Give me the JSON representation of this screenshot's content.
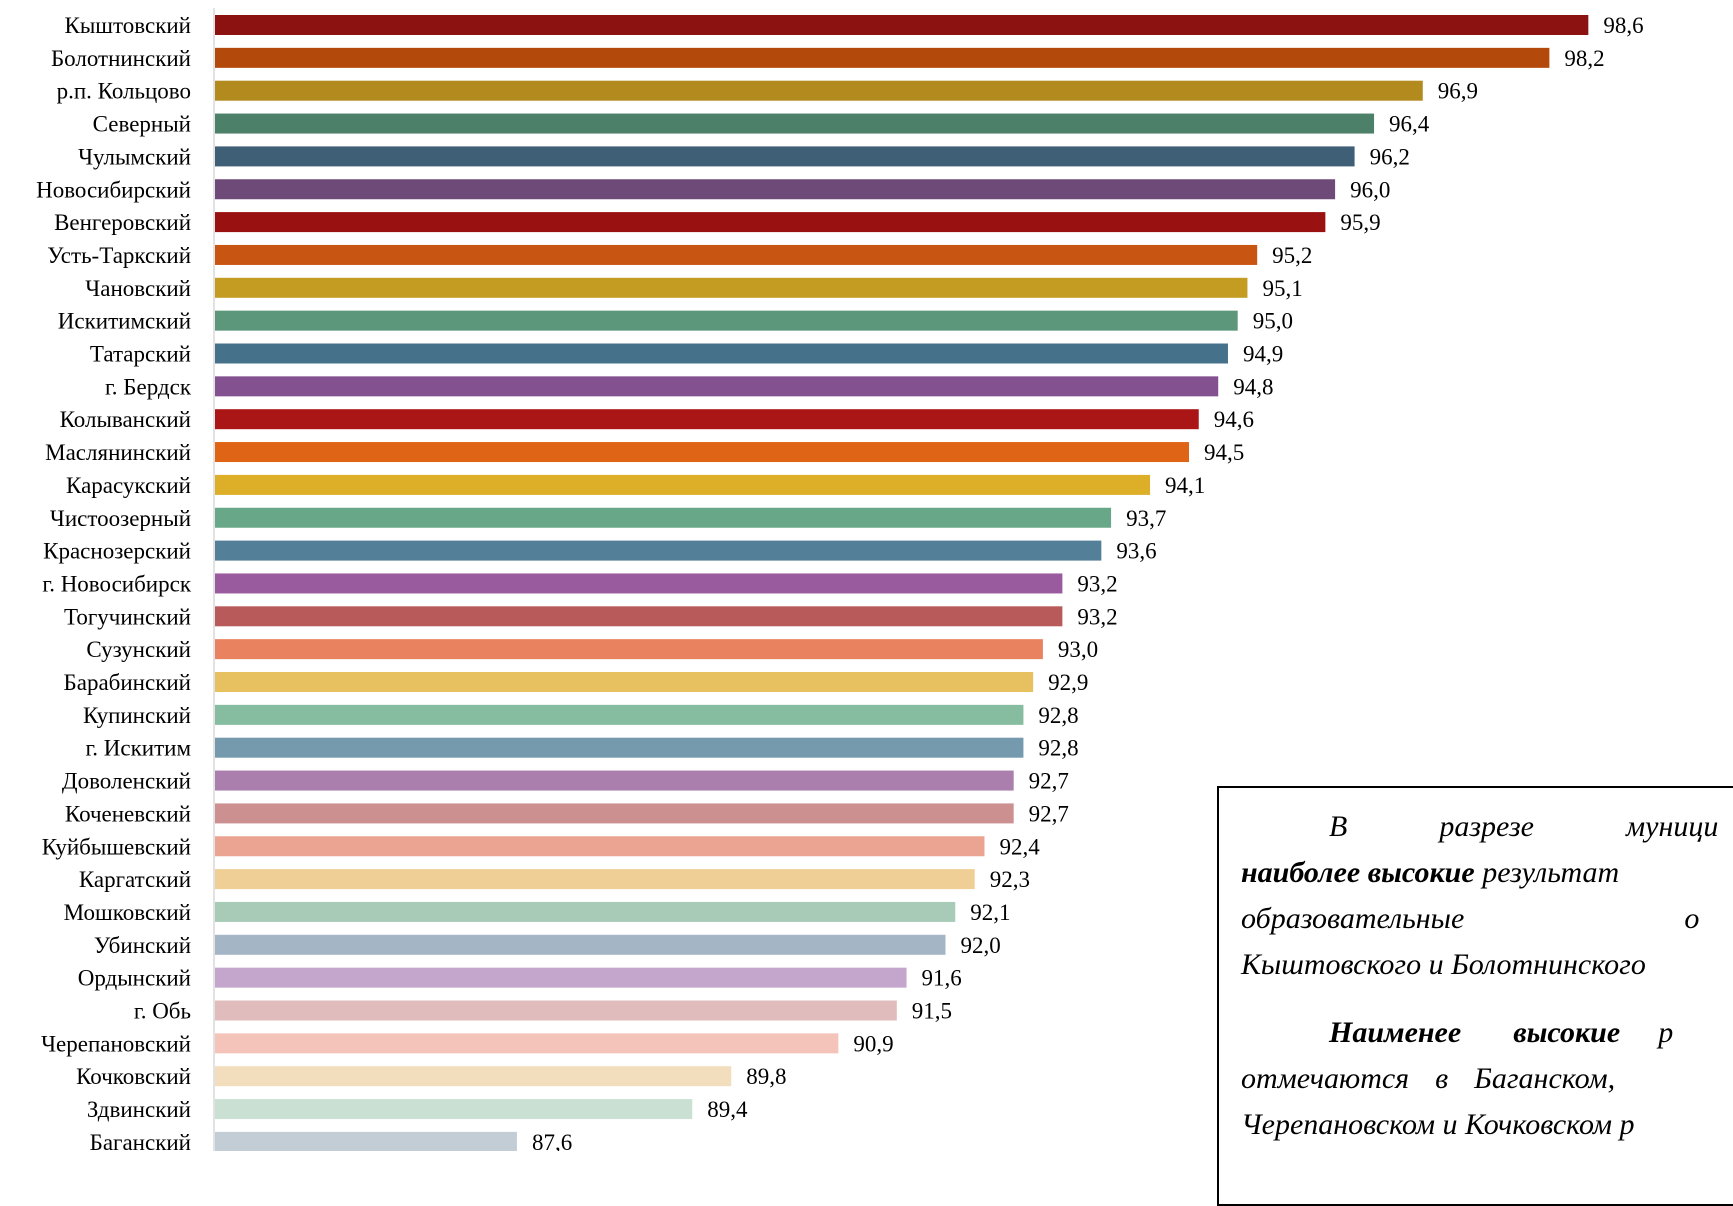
{
  "chart_data": {
    "type": "bar",
    "orientation": "horizontal",
    "categories": [
      "Кыштовский",
      "Болотнинский",
      "р.п. Кольцово",
      "Северный",
      "Чулымский",
      "Новосибирский",
      "Венгеровский",
      "Усть-Таркский",
      "Чановский",
      "Искитимский",
      "Татарский",
      "г. Бердск",
      "Колыванский",
      "Маслянинский",
      "Карасукский",
      "Чистоозерный",
      "Краснозерский",
      "г. Новосибирск",
      "Тогучинский",
      "Сузунский",
      "Барабинский",
      "Купинский",
      "г. Искитим",
      "Доволенский",
      "Коченевский",
      "Куйбышевский",
      "Каргатский",
      "Мошковский",
      "Убинский",
      "Ордынский",
      "г. Обь",
      "Черепановский",
      "Кочковский",
      "Здвинский",
      "Баганский"
    ],
    "values": [
      98.6,
      98.2,
      96.9,
      96.4,
      96.2,
      96.0,
      95.9,
      95.2,
      95.1,
      95.0,
      94.9,
      94.8,
      94.6,
      94.5,
      94.1,
      93.7,
      93.6,
      93.2,
      93.2,
      93.0,
      92.9,
      92.8,
      92.8,
      92.7,
      92.7,
      92.4,
      92.3,
      92.1,
      92.0,
      91.6,
      91.5,
      90.9,
      89.8,
      89.4,
      87.6
    ],
    "value_labels": [
      "98,6",
      "98,2",
      "96,9",
      "96,4",
      "96,2",
      "96,0",
      "95,9",
      "95,2",
      "95,1",
      "95,0",
      "94,9",
      "94,8",
      "94,6",
      "94,5",
      "94,1",
      "93,7",
      "93,6",
      "93,2",
      "93,2",
      "93,0",
      "92,9",
      "92,8",
      "92,8",
      "92,7",
      "92,7",
      "92,4",
      "92,3",
      "92,1",
      "92,0",
      "91,6",
      "91,5",
      "90,9",
      "89,8",
      "89,4",
      "87,6"
    ],
    "colors": [
      "#8C1111",
      "#B34A0C",
      "#B38A1E",
      "#4C8068",
      "#3F5F77",
      "#6E4A78",
      "#9A1111",
      "#C95512",
      "#C49C22",
      "#5C967B",
      "#46718A",
      "#835190",
      "#AA1616",
      "#E06416",
      "#DDAE27",
      "#68A888",
      "#537F99",
      "#9A5A9E",
      "#B85A5A",
      "#E8825F",
      "#E7C060",
      "#86BCA0",
      "#7599AD",
      "#AA7FAE",
      "#CC9090",
      "#EBA492",
      "#EFCF96",
      "#A8CBB8",
      "#A4B6C6",
      "#C4A6CC",
      "#E0BCBC",
      "#F4C4BA",
      "#F2DDBC",
      "#C9E0D2",
      "#C3CDD6"
    ],
    "xlim": [
      84.5,
      98.6
    ],
    "grid": false,
    "legend": "none",
    "title": "",
    "xlabel": "",
    "ylabel": ""
  },
  "callout": {
    "p1_l1_w1": "В",
    "p1_l1_w2": "разрезе",
    "p1_l1_w3": "муници",
    "p1_l2_bold": "наиболее высокие",
    "p1_l2_rest": " результат",
    "p1_l3_w1": "образовательные",
    "p1_l3_w2": "о",
    "p1_l4": "Кыштовского и Болотнинского",
    "p2_l1_bold1": "Наименее",
    "p2_l1_bold2": "высокие",
    "p2_l1_rest": "р",
    "p2_l2_w1": "отмечаются",
    "p2_l2_w2": "в",
    "p2_l2_w3": "Баганском,",
    "p2_l3": "Черепановском и Кочковском р"
  }
}
